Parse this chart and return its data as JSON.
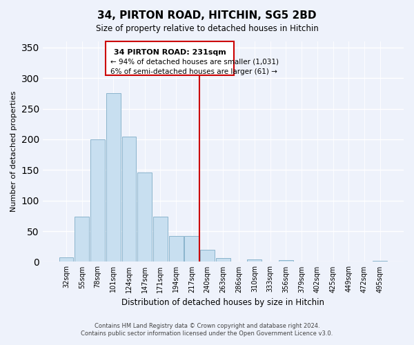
{
  "title": "34, PIRTON ROAD, HITCHIN, SG5 2BD",
  "subtitle": "Size of property relative to detached houses in Hitchin",
  "xlabel": "Distribution of detached houses by size in Hitchin",
  "ylabel": "Number of detached properties",
  "bar_labels": [
    "32sqm",
    "55sqm",
    "78sqm",
    "101sqm",
    "124sqm",
    "147sqm",
    "171sqm",
    "194sqm",
    "217sqm",
    "240sqm",
    "263sqm",
    "286sqm",
    "310sqm",
    "333sqm",
    "356sqm",
    "379sqm",
    "402sqm",
    "425sqm",
    "449sqm",
    "472sqm",
    "495sqm"
  ],
  "bar_values": [
    7,
    74,
    200,
    275,
    204,
    146,
    74,
    42,
    42,
    20,
    6,
    0,
    4,
    0,
    3,
    0,
    0,
    0,
    0,
    0,
    2
  ],
  "bar_color": "#c8dff0",
  "bar_edge_color": "#8ab4cc",
  "ylim": [
    0,
    360
  ],
  "yticks": [
    0,
    50,
    100,
    150,
    200,
    250,
    300,
    350
  ],
  "vline_x": 8.5,
  "vline_color": "#cc0000",
  "annotation_title": "34 PIRTON ROAD: 231sqm",
  "annotation_line1": "← 94% of detached houses are smaller (1,031)",
  "annotation_line2": "6% of semi-detached houses are larger (61) →",
  "footer_line1": "Contains HM Land Registry data © Crown copyright and database right 2024.",
  "footer_line2": "Contains public sector information licensed under the Open Government Licence v3.0.",
  "background_color": "#eef2fb",
  "plot_background_color": "#eef2fb",
  "grid_color": "#ffffff"
}
